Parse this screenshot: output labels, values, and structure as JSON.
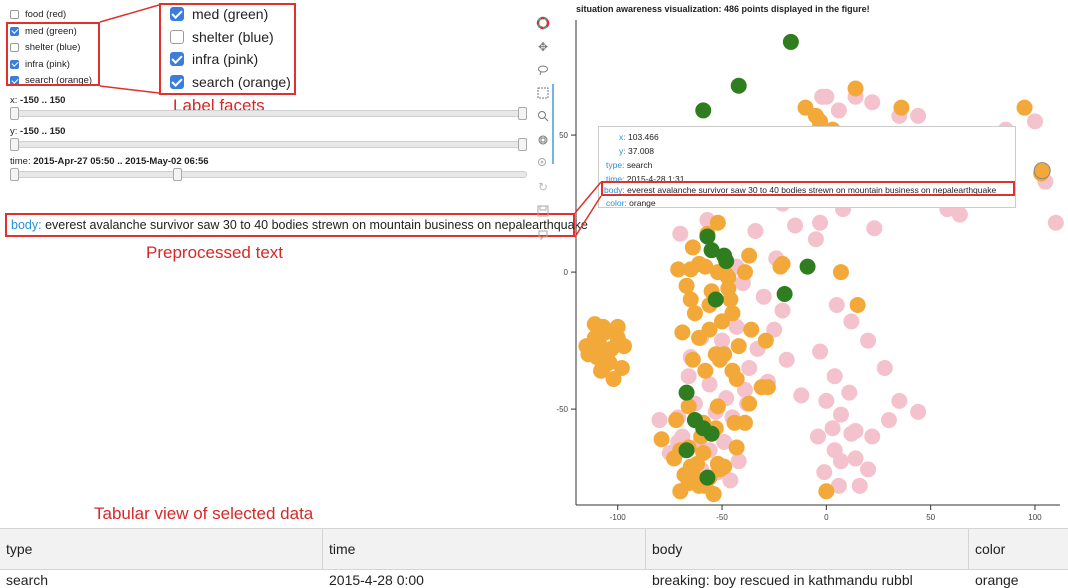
{
  "facets": [
    {
      "label": "food (red)",
      "checked": false
    },
    {
      "label": "med (green)",
      "checked": true
    },
    {
      "label": "shelter (blue)",
      "checked": false
    },
    {
      "label": "infra (pink)",
      "checked": true
    },
    {
      "label": "search (orange)",
      "checked": true
    }
  ],
  "facets_zoom": [
    {
      "label": "med (green)",
      "checked": true
    },
    {
      "label": "shelter (blue)",
      "checked": false
    },
    {
      "label": "infra (pink)",
      "checked": true
    },
    {
      "label": "search (orange)",
      "checked": true
    }
  ],
  "annotations": {
    "label_facets": "Label facets",
    "preprocessed_text": "Preprocessed text",
    "tabular_view": "Tabular view of selected data"
  },
  "sliders": {
    "x": {
      "label": "x:",
      "value": "-150 .. 150",
      "range": [
        0,
        1
      ]
    },
    "y": {
      "label": "y:",
      "value": "-150 .. 150",
      "range": [
        0,
        1
      ]
    },
    "time": {
      "label": "time:",
      "value": "2015-Apr-27 05:50 .. 2015-May-02 06:56",
      "range": [
        0,
        0.32
      ]
    }
  },
  "body_callout": {
    "key": "body:",
    "value": "everest avalanche survivor saw 30 to 40 bodies strewn on mountain business on nepalearthquake"
  },
  "tooltip": {
    "x_key": "x:",
    "x_val": "103.466",
    "y_key": "y:",
    "y_val": "37.008",
    "type_key": "type:",
    "type_val": "search",
    "time_key": "time:",
    "time_val": "2015-4-28 1:31",
    "body_key": "body:",
    "body_val": "everest avalanche survivor saw 30 to 40 bodies strewn on mountain business on nepalearthquake",
    "color_key": "color:",
    "color_val": "orange"
  },
  "table": {
    "headers": [
      "type",
      "time",
      "body",
      "color"
    ],
    "first_row": [
      "search",
      "2015-4-28 0:00",
      "breaking: boy rescued in kathmandu rubbl",
      "orange"
    ]
  },
  "colors": {
    "med": "#2f7d1f",
    "infra": "#f4c2cc",
    "search": "#f3a93a",
    "annotation": "#e0312c",
    "key_text": "#2b8fd8"
  },
  "toolbar_icons": [
    "bokeh-logo-icon",
    "pan-icon",
    "lasso-select-icon",
    "box-select-icon",
    "wheel-zoom-icon",
    "box-zoom-icon",
    "zoom-in-icon",
    "reset-icon",
    "save-icon",
    "hover-icon"
  ],
  "chart_data": {
    "type": "scatter",
    "title": "situation awareness visualization: 486 points displayed in the figure!",
    "xlabel": "",
    "ylabel": "",
    "xlim": [
      -120,
      112
    ],
    "ylim": [
      -85,
      92
    ],
    "xticks": [
      -100,
      -50,
      0,
      50,
      100
    ],
    "yticks": [
      50,
      0,
      -50
    ],
    "series": [
      {
        "name": "med (green)",
        "color": "#2f7d1f",
        "x": [
          -17,
          -42,
          -59,
          -67,
          -53,
          -55,
          -57,
          -49,
          -9,
          -20,
          -67,
          -63,
          -59,
          -67,
          -55,
          -57,
          -48
        ],
        "y": [
          84,
          68,
          59,
          48,
          -10,
          8,
          13,
          6,
          2,
          -8,
          -44,
          -54,
          -57,
          -65,
          -59,
          -75,
          4
        ]
      },
      {
        "name": "infra (pink)",
        "color": "#f4c2cc",
        "x": [
          -2,
          0,
          6,
          14,
          22,
          35,
          44,
          47,
          37,
          30,
          55,
          63,
          71,
          64,
          58,
          52,
          44,
          86,
          100,
          105,
          110,
          -30,
          -21,
          -12,
          -3,
          8,
          16,
          23,
          -5,
          -15,
          -24,
          -34,
          -43,
          -40,
          -30,
          -21,
          -25,
          -33,
          -43,
          -50,
          -37,
          -28,
          -19,
          -12,
          5,
          12,
          20,
          28,
          11,
          4,
          -3,
          0,
          7,
          14,
          22,
          30,
          35,
          44,
          -4,
          4,
          14,
          20,
          -1,
          6,
          16,
          7,
          3,
          12,
          -66,
          -56,
          -48,
          -39,
          -63,
          -53,
          -45,
          -38,
          -61,
          -56,
          -49,
          -42,
          -60,
          -52,
          -46,
          -69,
          -50,
          -60,
          -65,
          -57,
          -70,
          -79,
          -71,
          -75,
          -80,
          -71
        ],
        "y": [
          64,
          64,
          59,
          64,
          62,
          57,
          57,
          45,
          38,
          40,
          46,
          36,
          31,
          21,
          23,
          30,
          35,
          52,
          55,
          33,
          18,
          28,
          25,
          29,
          18,
          23,
          30,
          16,
          12,
          17,
          5,
          15,
          2,
          -4,
          -9,
          -14,
          -21,
          -28,
          -20,
          -25,
          -35,
          -40,
          -32,
          -45,
          -12,
          -18,
          -25,
          -35,
          -44,
          -38,
          -29,
          -47,
          -52,
          -58,
          -60,
          -54,
          -47,
          -51,
          -60,
          -65,
          -68,
          -72,
          -73,
          -78,
          -78,
          -69,
          -57,
          -59,
          -38,
          -41,
          -46,
          -43,
          -48,
          -51,
          -53,
          -48,
          -63,
          -65,
          -62,
          -69,
          -72,
          -73,
          -76,
          -60,
          -29,
          -24,
          -31,
          19,
          14,
          30,
          -62,
          -66,
          -54,
          -53
        ]
      },
      {
        "name": "search (orange)",
        "color": "#f3a93a",
        "x": [
          -10,
          -3,
          14,
          36,
          95,
          103,
          -6,
          -3,
          -16,
          -22,
          -11,
          -5,
          3,
          12,
          -29,
          -40,
          -45,
          -52,
          -57,
          -64,
          -71,
          -58,
          -47,
          -37,
          -21,
          -39,
          -46,
          -55,
          -61,
          -67,
          -45,
          -50,
          -56,
          -63,
          -69,
          -56,
          -49,
          -42,
          -36,
          -29,
          -64,
          -58,
          -51,
          -43,
          -28,
          7,
          15,
          -65,
          -52,
          -47,
          -61,
          -53,
          -45,
          -37,
          -66,
          -59,
          -52,
          -44,
          -72,
          -66,
          -60,
          -53,
          -79,
          -70,
          -59,
          -65,
          -52,
          -73,
          -68,
          -62,
          -56,
          -49,
          -66,
          -61,
          -54,
          -70,
          -63,
          -58,
          -51,
          -43,
          -39,
          -31,
          -107,
          -111,
          -100,
          -105,
          -114,
          -104,
          -103,
          -109,
          -100,
          -97,
          -111,
          -115,
          -106,
          -98,
          -102,
          -108,
          -110,
          -106,
          -48,
          -65,
          -22,
          0
        ],
        "y": [
          60,
          55,
          67,
          60,
          60,
          36,
          48,
          54,
          42,
          35,
          38,
          57,
          52,
          49,
          38,
          41,
          44,
          18,
          14,
          9,
          1,
          2,
          -2,
          6,
          3,
          0,
          -10,
          -7,
          3,
          -5,
          -15,
          -18,
          -12,
          -15,
          -22,
          -21,
          -30,
          -27,
          -21,
          -25,
          -32,
          -36,
          -32,
          -39,
          -42,
          0,
          -12,
          -10,
          0,
          -6,
          -24,
          -30,
          -36,
          -48,
          -49,
          -55,
          -49,
          -55,
          -54,
          -64,
          -60,
          -57,
          -61,
          -65,
          -66,
          -71,
          -70,
          -68,
          -74,
          -70,
          -75,
          -71,
          -77,
          -78,
          -81,
          -80,
          -75,
          -78,
          -72,
          -64,
          -55,
          -42,
          -20,
          -24,
          -24,
          -30,
          -30,
          -33,
          -28,
          -26,
          -20,
          -27,
          -19,
          -27,
          -34,
          -35,
          -39,
          -36,
          -31,
          -22,
          -1,
          1,
          2,
          -80
        ]
      }
    ]
  }
}
